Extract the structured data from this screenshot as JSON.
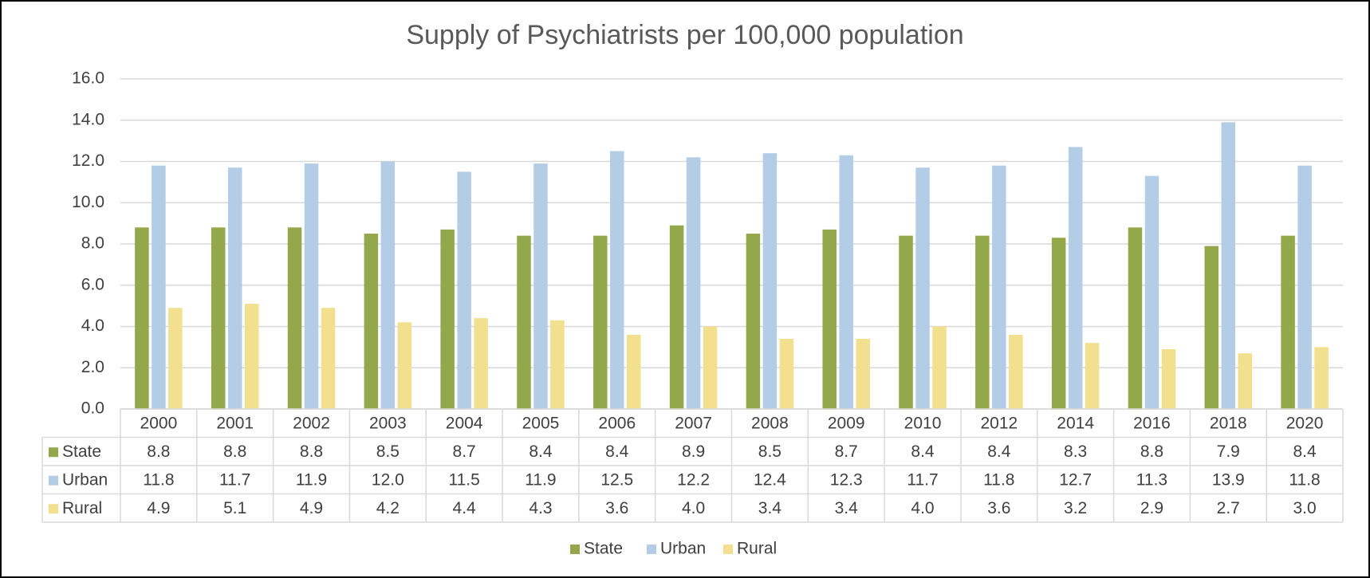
{
  "chart_data": {
    "type": "bar",
    "title": "Supply of Psychiatrists per 100,000 population",
    "categories": [
      "2000",
      "2001",
      "2002",
      "2003",
      "2004",
      "2005",
      "2006",
      "2007",
      "2008",
      "2009",
      "2010",
      "2012",
      "2014",
      "2016",
      "2018",
      "2020"
    ],
    "series": [
      {
        "name": "State",
        "color": "#93a84a",
        "values": [
          8.8,
          8.8,
          8.8,
          8.5,
          8.7,
          8.4,
          8.4,
          8.9,
          8.5,
          8.7,
          8.4,
          8.4,
          8.3,
          8.8,
          7.9,
          8.4
        ],
        "value_labels": [
          "8.8",
          "8.8",
          "8.8",
          "8.5",
          "8.7",
          "8.4",
          "8.4",
          "8.9",
          "8.5",
          "8.7",
          "8.4",
          "8.4",
          "8.3",
          "8.8",
          "7.9",
          "8.4"
        ]
      },
      {
        "name": "Urban",
        "color": "#b4cde6",
        "values": [
          11.8,
          11.7,
          11.9,
          12.0,
          11.5,
          11.9,
          12.5,
          12.2,
          12.4,
          12.3,
          11.7,
          11.8,
          12.7,
          11.3,
          13.9,
          11.8
        ],
        "value_labels": [
          "11.8",
          "11.7",
          "11.9",
          "12.0",
          "11.5",
          "11.9",
          "12.5",
          "12.2",
          "12.4",
          "12.3",
          "11.7",
          "11.8",
          "12.7",
          "11.3",
          "13.9",
          "11.8"
        ]
      },
      {
        "name": "Rural",
        "color": "#f2e08f",
        "values": [
          4.9,
          5.1,
          4.9,
          4.2,
          4.4,
          4.3,
          3.6,
          4.0,
          3.4,
          3.4,
          4.0,
          3.6,
          3.2,
          2.9,
          2.7,
          3.0
        ],
        "value_labels": [
          "4.9",
          "5.1",
          "4.9",
          "4.2",
          "4.4",
          "4.3",
          "3.6",
          "4.0",
          "3.4",
          "3.4",
          "4.0",
          "3.6",
          "3.2",
          "2.9",
          "2.7",
          "3.0"
        ]
      }
    ],
    "ylim": [
      0,
      16
    ],
    "yticks": [
      {
        "value": 0,
        "label": "0.0"
      },
      {
        "value": 2,
        "label": "2.0"
      },
      {
        "value": 4,
        "label": "4.0"
      },
      {
        "value": 6,
        "label": "6.0"
      },
      {
        "value": 8,
        "label": "8.0"
      },
      {
        "value": 10,
        "label": "10.0"
      },
      {
        "value": 12,
        "label": "12.0"
      },
      {
        "value": 14,
        "label": "14.0"
      },
      {
        "value": 16,
        "label": "16.0"
      }
    ],
    "grid": true,
    "legend": "bottom"
  }
}
